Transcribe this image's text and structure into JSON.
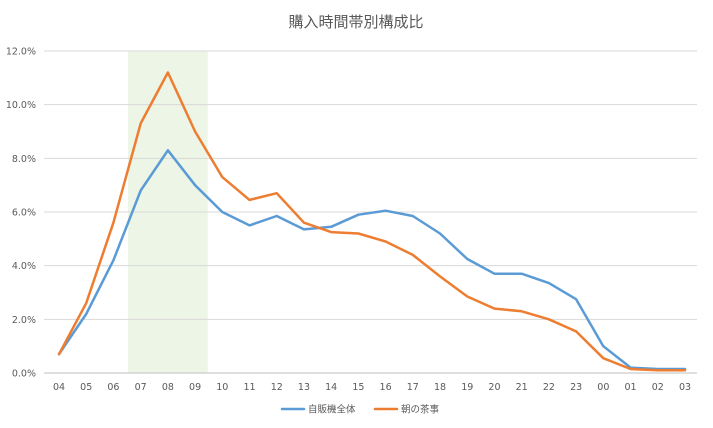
{
  "chart_data": {
    "type": "line",
    "title": "購入時間帯別構成比",
    "xlabel": "",
    "ylabel": "",
    "categories": [
      "04",
      "05",
      "06",
      "07",
      "08",
      "09",
      "10",
      "11",
      "12",
      "13",
      "14",
      "15",
      "16",
      "17",
      "18",
      "19",
      "20",
      "21",
      "22",
      "23",
      "00",
      "01",
      "02",
      "03"
    ],
    "ylim": [
      0,
      12
    ],
    "y_ticks": [
      0,
      2,
      4,
      6,
      8,
      10,
      12
    ],
    "y_tick_labels": [
      "0.0%",
      "2.0%",
      "4.0%",
      "6.0%",
      "8.0%",
      "10.0%",
      "12.0%"
    ],
    "grid": true,
    "legend_position": "bottom",
    "highlight_band": {
      "from_category": "07",
      "to_category": "09",
      "color": "#e2f0d9"
    },
    "series": [
      {
        "name": "自販機全体",
        "color": "#5b9bd5",
        "values": [
          0.7,
          2.2,
          4.2,
          6.8,
          8.3,
          7.0,
          6.0,
          5.5,
          5.85,
          5.35,
          5.45,
          5.9,
          6.05,
          5.85,
          5.2,
          4.25,
          3.7,
          3.7,
          3.35,
          2.75,
          1.0,
          0.2,
          0.15,
          0.15
        ]
      },
      {
        "name": "朝の茶事",
        "color": "#ed7d31",
        "values": [
          0.7,
          2.6,
          5.6,
          9.3,
          11.2,
          9.0,
          7.3,
          6.45,
          6.7,
          5.6,
          5.25,
          5.2,
          4.9,
          4.4,
          3.6,
          2.85,
          2.4,
          2.3,
          2.0,
          1.55,
          0.55,
          0.15,
          0.1,
          0.1
        ]
      }
    ]
  }
}
